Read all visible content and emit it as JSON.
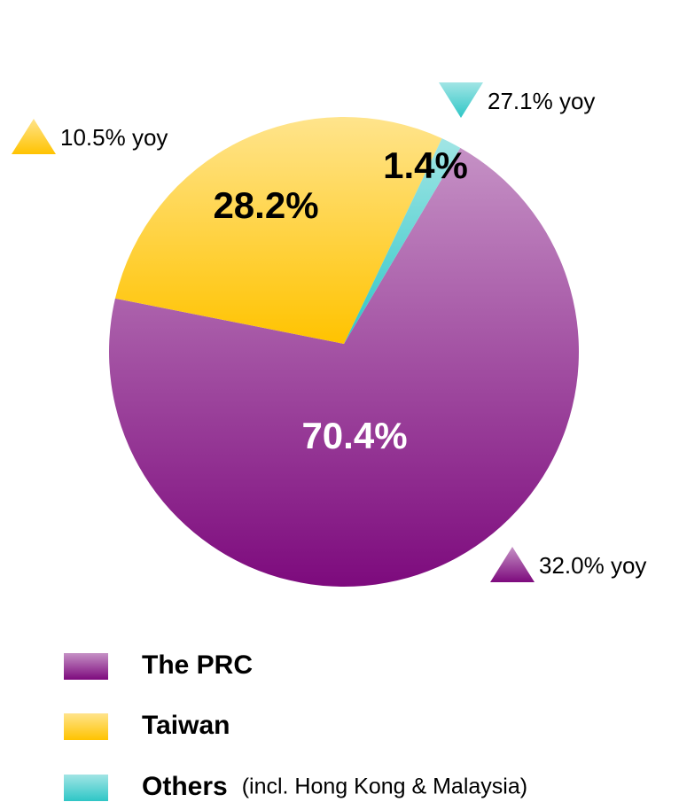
{
  "chart_data": {
    "type": "pie",
    "categories": [
      "The PRC",
      "Taiwan",
      "Others"
    ],
    "values": [
      70.4,
      28.2,
      1.4
    ],
    "value_labels": [
      "70.4%",
      "28.2%",
      "1.4%"
    ],
    "colors": [
      "#7d0a7d",
      "#ffc300",
      "#2ec6c6"
    ],
    "legend_note": "(incl. Hong Kong & Malaysia)",
    "annotations": [
      {
        "text": "32.0% yoy",
        "direction": "up"
      },
      {
        "text": "10.5% yoy",
        "direction": "up"
      },
      {
        "text": "27.1% yoy",
        "direction": "down"
      }
    ]
  }
}
